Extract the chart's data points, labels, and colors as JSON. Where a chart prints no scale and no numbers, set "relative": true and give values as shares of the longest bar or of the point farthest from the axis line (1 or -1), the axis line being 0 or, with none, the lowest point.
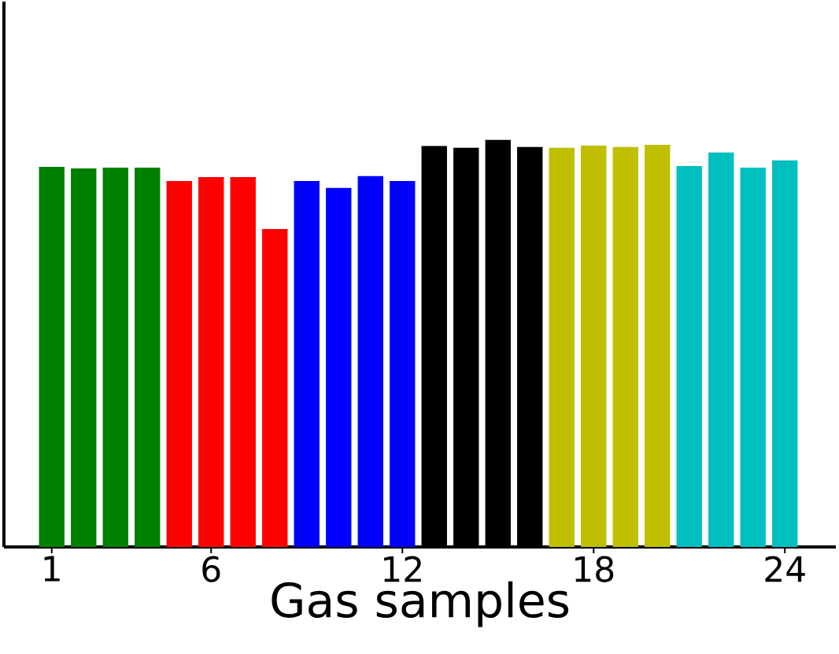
{
  "chart_data": {
    "type": "bar",
    "relative": true,
    "xlabel": "Gas samples",
    "x": [
      1,
      2,
      3,
      4,
      5,
      6,
      7,
      8,
      9,
      10,
      11,
      12,
      13,
      14,
      15,
      16,
      17,
      18,
      19,
      20,
      21,
      22,
      23,
      24
    ],
    "values": [
      0.934,
      0.93,
      0.932,
      0.932,
      0.899,
      0.909,
      0.909,
      0.781,
      0.899,
      0.882,
      0.911,
      0.899,
      0.985,
      0.981,
      1,
      0.983,
      0.981,
      0.986,
      0.983,
      0.988,
      0.936,
      0.969,
      0.932,
      0.95
    ],
    "colors": [
      "#008000",
      "#008000",
      "#008000",
      "#008000",
      "#ff0000",
      "#ff0000",
      "#ff0000",
      "#ff0000",
      "#0000ff",
      "#0000ff",
      "#0000ff",
      "#0000ff",
      "#000000",
      "#000000",
      "#000000",
      "#000000",
      "#bfbf00",
      "#bfbf00",
      "#bfbf00",
      "#bfbf00",
      "#00bfbf",
      "#00bfbf",
      "#00bfbf",
      "#00bfbf"
    ],
    "xlim": [
      -0.5,
      25.6
    ],
    "xticks": [
      1,
      6,
      12,
      18,
      24
    ],
    "grid": false
  }
}
